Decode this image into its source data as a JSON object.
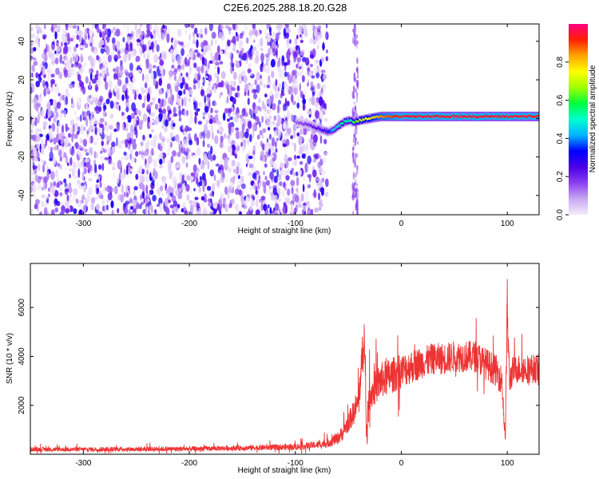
{
  "figure": {
    "title": "C2E6.2025.288.18.20.G28"
  },
  "chart_data": [
    {
      "type": "heatmap",
      "xlabel": "Height of straight line (km)",
      "ylabel": "Frequency (Hz)",
      "xlim": [
        -350,
        130
      ],
      "ylim": [
        -50,
        49
      ],
      "xticks": [
        -300,
        -200,
        -100,
        0,
        100
      ],
      "yticks": [
        -40,
        -20,
        0,
        20,
        40
      ],
      "noise_region_x": [
        -350,
        -70
      ],
      "noise_gap_x": [
        -63,
        -43
      ],
      "signal_trace": {
        "x": [
          -100,
          -90,
          -80,
          -70,
          -65,
          -60,
          -55,
          -50,
          -45,
          -40,
          -30,
          -20,
          -10,
          0,
          20,
          40,
          60,
          80,
          100,
          120,
          130
        ],
        "y": [
          -2,
          -3,
          -5,
          -7,
          -6,
          -4,
          -2,
          -1,
          -2,
          -1,
          0,
          1,
          1,
          1,
          1,
          1,
          1,
          1,
          1,
          1,
          1
        ],
        "amplitude": [
          0.15,
          0.2,
          0.25,
          0.3,
          0.45,
          0.5,
          0.55,
          0.5,
          0.6,
          0.7,
          0.75,
          0.85,
          0.9,
          0.95,
          0.95,
          0.95,
          0.95,
          0.95,
          0.95,
          0.95,
          0.95
        ]
      },
      "colorbar": {
        "label": "Normalized spectral amplitude",
        "range": [
          0,
          1
        ],
        "ticks": [
          0.0,
          0.2,
          0.4,
          0.6,
          0.8
        ],
        "tick_labels": [
          "0.0",
          "0.2",
          "0.4",
          "0.6",
          "0.8"
        ],
        "colors": [
          "#f4ecfb",
          "#c9a8f2",
          "#8a3ff0",
          "#4b00e8",
          "#0000ff",
          "#00b4ff",
          "#00ffd0",
          "#00ff40",
          "#a0ff00",
          "#ffff00",
          "#ffa500",
          "#ff2000",
          "#ff0080"
        ]
      }
    },
    {
      "type": "line",
      "xlabel": "Height of straight line (km)",
      "ylabel": "SNR (10 * v/v)",
      "xlim": [
        -350,
        130
      ],
      "ylim": [
        0,
        7800
      ],
      "xticks": [
        -300,
        -200,
        -100,
        0,
        100
      ],
      "yticks": [
        2000,
        4000,
        6000
      ],
      "color": "#ee3333",
      "envelope": {
        "x": [
          -350,
          -300,
          -250,
          -200,
          -150,
          -100,
          -80,
          -70,
          -60,
          -55,
          -50,
          -45,
          -40,
          -38,
          -35,
          -33,
          -30,
          -25,
          -20,
          -10,
          0,
          10,
          20,
          30,
          40,
          50,
          60,
          70,
          80,
          90,
          95,
          98,
          100,
          102,
          105,
          110,
          120,
          130
        ],
        "y": [
          200,
          200,
          210,
          220,
          260,
          300,
          380,
          450,
          650,
          900,
          1300,
          1700,
          2200,
          3500,
          4800,
          900,
          2400,
          2700,
          3000,
          3200,
          3400,
          3600,
          3750,
          3900,
          3900,
          4000,
          4000,
          4000,
          3700,
          3400,
          3000,
          500,
          6000,
          3000,
          3400,
          3500,
          3500,
          3500
        ],
        "spread": [
          90,
          90,
          95,
          100,
          110,
          130,
          150,
          180,
          250,
          320,
          400,
          500,
          600,
          800,
          900,
          500,
          700,
          700,
          750,
          750,
          700,
          700,
          650,
          650,
          650,
          650,
          650,
          650,
          650,
          650,
          600,
          300,
          1500,
          600,
          600,
          600,
          600,
          600
        ]
      }
    }
  ]
}
